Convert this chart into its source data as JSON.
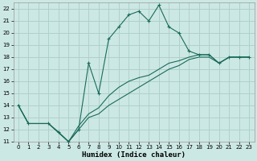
{
  "xlabel": "Humidex (Indice chaleur)",
  "background_color": "#cce8e4",
  "grid_color": "#b0d0cc",
  "line_color": "#1a6b5a",
  "xlim": [
    -0.5,
    23.5
  ],
  "ylim": [
    11,
    22.5
  ],
  "yticks": [
    11,
    12,
    13,
    14,
    15,
    16,
    17,
    18,
    19,
    20,
    21,
    22
  ],
  "xticks": [
    0,
    1,
    2,
    3,
    4,
    5,
    6,
    7,
    8,
    9,
    10,
    11,
    12,
    13,
    14,
    15,
    16,
    17,
    18,
    19,
    20,
    21,
    22,
    23
  ],
  "main_line_x": [
    0,
    1,
    3,
    4,
    5,
    6,
    7,
    8,
    9,
    10,
    11,
    12,
    13,
    14,
    15,
    16,
    17,
    18,
    19,
    20,
    21,
    22,
    23
  ],
  "main_line_y": [
    14,
    12.5,
    12.5,
    11.8,
    11.0,
    12.0,
    17.5,
    15.0,
    19.5,
    20.5,
    21.5,
    21.8,
    21.0,
    22.3,
    20.5,
    20.0,
    18.5,
    18.2,
    18.2,
    17.5,
    18.0,
    18.0,
    18.0
  ],
  "line2_x": [
    0,
    1,
    3,
    5,
    6,
    7,
    8,
    9,
    10,
    11,
    12,
    13,
    14,
    15,
    16,
    17,
    18,
    19,
    20,
    21,
    22,
    23
  ],
  "line2_y": [
    14,
    12.5,
    12.5,
    11.0,
    12.0,
    13.0,
    13.3,
    14.0,
    14.5,
    15.0,
    15.5,
    16.0,
    16.5,
    17.0,
    17.3,
    17.8,
    18.0,
    18.0,
    17.5,
    18.0,
    18.0,
    18.0
  ],
  "line3_x": [
    0,
    1,
    3,
    5,
    6,
    7,
    8,
    9,
    10,
    11,
    12,
    13,
    14,
    15,
    16,
    17,
    18,
    19,
    20,
    21,
    22,
    23
  ],
  "line3_y": [
    14,
    12.5,
    12.5,
    11.0,
    12.3,
    13.3,
    13.8,
    14.8,
    15.5,
    16.0,
    16.3,
    16.5,
    17.0,
    17.5,
    17.7,
    18.0,
    18.2,
    18.2,
    17.5,
    18.0,
    18.0,
    18.0
  ]
}
